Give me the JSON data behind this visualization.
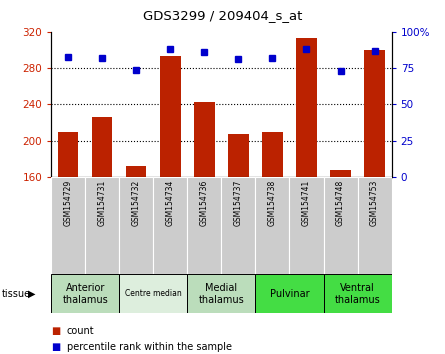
{
  "title": "GDS3299 / 209404_s_at",
  "samples": [
    "GSM154729",
    "GSM154731",
    "GSM154732",
    "GSM154734",
    "GSM154736",
    "GSM154737",
    "GSM154738",
    "GSM154741",
    "GSM154748",
    "GSM154753"
  ],
  "counts": [
    210,
    226,
    172,
    293,
    243,
    207,
    210,
    313,
    168,
    300
  ],
  "percentiles": [
    83,
    82,
    74,
    88,
    86,
    81,
    82,
    88,
    73,
    87
  ],
  "ymin": 160,
  "ymax": 320,
  "yticks": [
    160,
    200,
    240,
    280,
    320
  ],
  "y2ticks": [
    0,
    25,
    50,
    75,
    100
  ],
  "bar_color": "#bb2200",
  "dot_color": "#0000cc",
  "tissue_groups": [
    {
      "label": "Anterior\nthalamus",
      "samples": [
        "GSM154729",
        "GSM154731"
      ],
      "color": "#bbddbb"
    },
    {
      "label": "Centre median",
      "samples": [
        "GSM154732",
        "GSM154734"
      ],
      "color": "#ddeedd"
    },
    {
      "label": "Medial\nthalamus",
      "samples": [
        "GSM154736",
        "GSM154737"
      ],
      "color": "#bbddbb"
    },
    {
      "label": "Pulvinar",
      "samples": [
        "GSM154738",
        "GSM154741"
      ],
      "color": "#44dd44"
    },
    {
      "label": "Ventral\nthalamus",
      "samples": [
        "GSM154748",
        "GSM154753"
      ],
      "color": "#44dd44"
    }
  ],
  "legend_count_color": "#bb2200",
  "legend_pct_color": "#0000cc",
  "plot_bg": "#ffffff",
  "tick_label_color_left": "#cc2200",
  "tick_label_color_right": "#0000cc",
  "sample_bg": "#cccccc",
  "grid_lines": [
    200,
    240,
    280
  ]
}
